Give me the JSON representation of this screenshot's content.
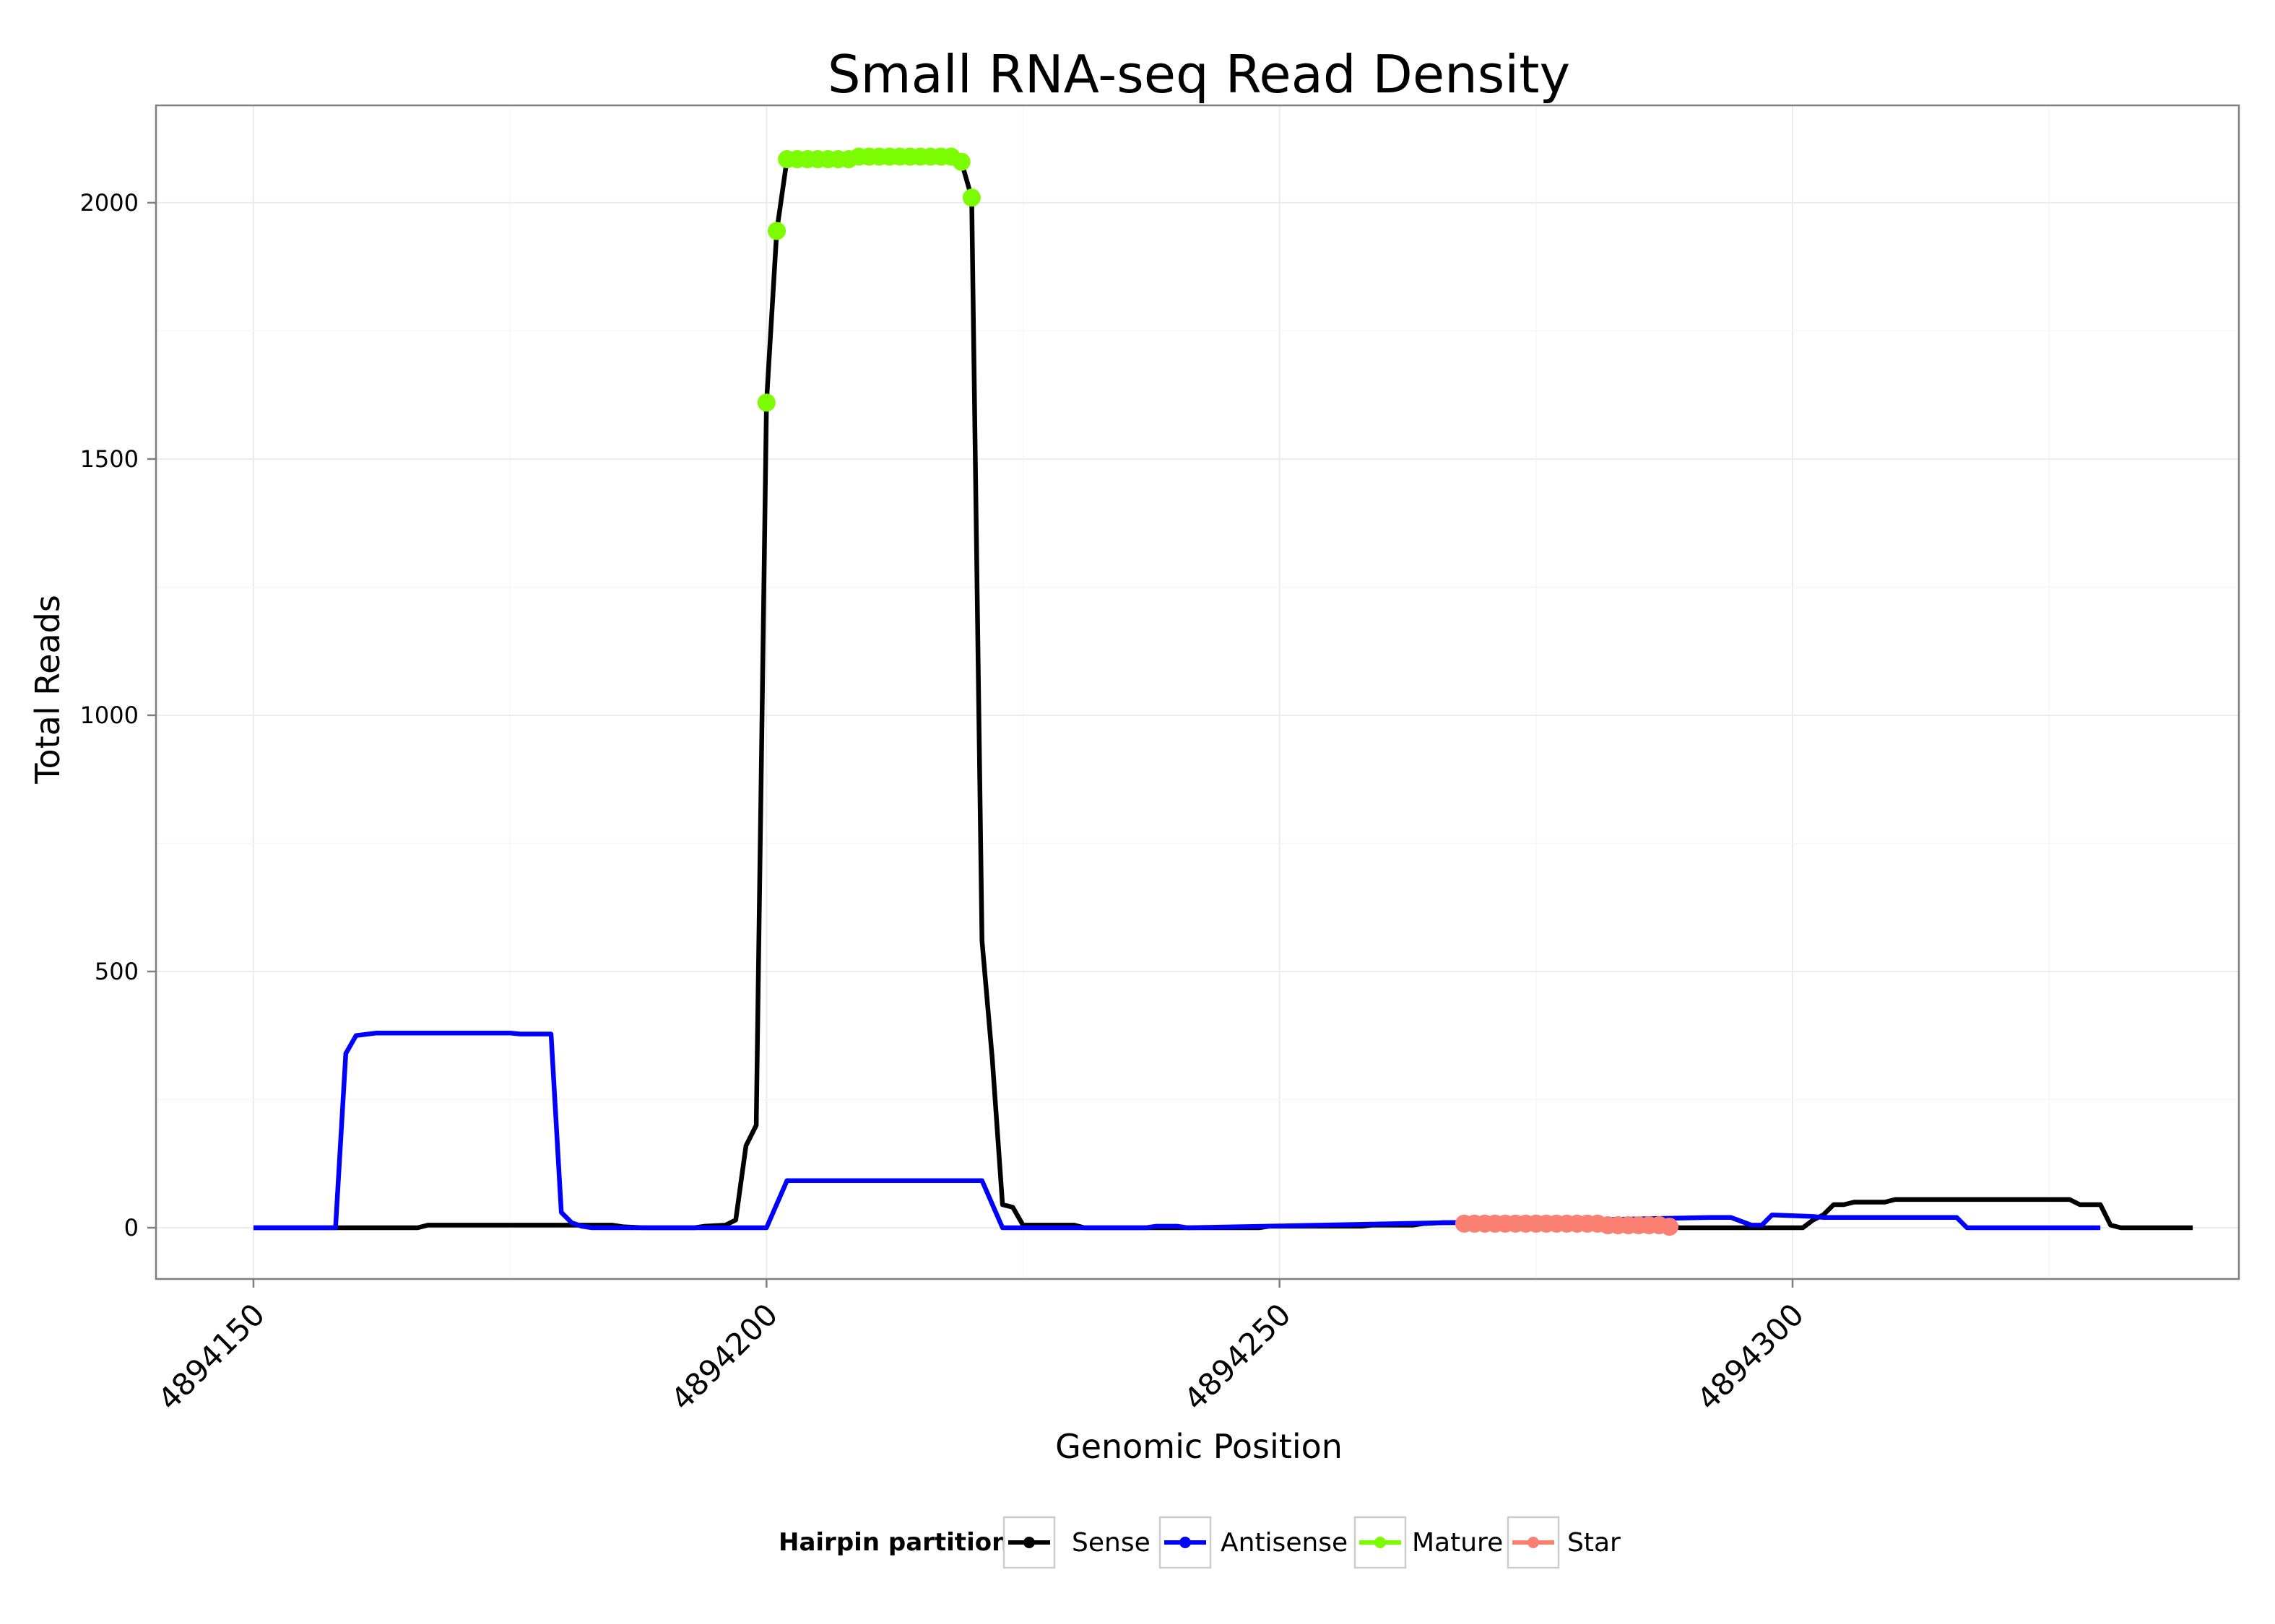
{
  "chart_data": {
    "type": "line",
    "title": "Small RNA-seq Read Density",
    "xlabel": "Genomic Position",
    "ylabel": "Total Reads",
    "xlim": [
      4894140.5,
      4894343.5
    ],
    "ylim": [
      -100,
      2190
    ],
    "x_ticks": [
      4894150,
      4894200,
      4894250,
      4894300
    ],
    "x_tick_labels": [
      "4894150",
      "4894200",
      "4894250",
      "4894300"
    ],
    "y_ticks": [
      0,
      500,
      1000,
      1500,
      2000
    ],
    "y_tick_labels": [
      "0",
      "500",
      "1000",
      "1500",
      "2000"
    ],
    "legend": {
      "title": "Hairpin partition",
      "position": "bottom",
      "entries": [
        {
          "name": "Sense",
          "color": "#000000"
        },
        {
          "name": "Antisense",
          "color": "#0000ff"
        },
        {
          "name": "Mature",
          "color": "#7cfc00"
        },
        {
          "name": "Star",
          "color": "#fa8072"
        }
      ]
    },
    "series": [
      {
        "name": "Sense",
        "kind": "line",
        "color": "#000000",
        "points": [
          [
            4894150,
            0
          ],
          [
            4894166,
            0
          ],
          [
            4894167,
            5
          ],
          [
            4894185,
            5
          ],
          [
            4894186,
            2
          ],
          [
            4894188,
            0
          ],
          [
            4894193,
            0
          ],
          [
            4894194,
            3
          ],
          [
            4894196,
            5
          ],
          [
            4894197,
            15
          ],
          [
            4894198,
            160
          ],
          [
            4894199,
            200
          ],
          [
            4894200,
            1610
          ],
          [
            4894201,
            1945
          ],
          [
            4894202,
            2085
          ],
          [
            4894219,
            2080
          ],
          [
            4894220,
            2010
          ],
          [
            4894221,
            560
          ],
          [
            4894222,
            330
          ],
          [
            4894223,
            45
          ],
          [
            4894224,
            40
          ],
          [
            4894225,
            5
          ],
          [
            4894230,
            5
          ],
          [
            4894231,
            0
          ],
          [
            4894248,
            0
          ],
          [
            4894249,
            3
          ],
          [
            4894258,
            3
          ],
          [
            4894259,
            5
          ],
          [
            4894263,
            5
          ],
          [
            4894264,
            8
          ],
          [
            4894266,
            10
          ],
          [
            4894287,
            8
          ],
          [
            4894288,
            3
          ],
          [
            4894289,
            0
          ],
          [
            4894301,
            0
          ],
          [
            4894302,
            15
          ],
          [
            4894303,
            25
          ],
          [
            4894304,
            45
          ],
          [
            4894305,
            45
          ],
          [
            4894306,
            50
          ],
          [
            4894309,
            50
          ],
          [
            4894310,
            55
          ],
          [
            4894327,
            55
          ],
          [
            4894328,
            45
          ],
          [
            4894330,
            45
          ],
          [
            4894331,
            5
          ],
          [
            4894332,
            0
          ],
          [
            4894339,
            0
          ]
        ]
      },
      {
        "name": "Antisense",
        "kind": "line",
        "color": "#0000ff",
        "points": [
          [
            4894150,
            0
          ],
          [
            4894158,
            0
          ],
          [
            4894159,
            340
          ],
          [
            4894160,
            375
          ],
          [
            4894162,
            380
          ],
          [
            4894175,
            380
          ],
          [
            4894176,
            378
          ],
          [
            4894179,
            378
          ],
          [
            4894180,
            30
          ],
          [
            4894181,
            10
          ],
          [
            4894182,
            3
          ],
          [
            4894183,
            0
          ],
          [
            4894200,
            0
          ],
          [
            4894202,
            92
          ],
          [
            4894221,
            92
          ],
          [
            4894223,
            0
          ],
          [
            4894237,
            0
          ],
          [
            4894238,
            3
          ],
          [
            4894240,
            3
          ],
          [
            4894241,
            0
          ],
          [
            4894292,
            20
          ],
          [
            4894294,
            20
          ],
          [
            4894296,
            5
          ],
          [
            4894297,
            5
          ],
          [
            4894298,
            25
          ],
          [
            4894302,
            22
          ],
          [
            4894303,
            20
          ],
          [
            4894316,
            20
          ],
          [
            4894317,
            0
          ],
          [
            4894330,
            0
          ]
        ]
      },
      {
        "name": "Mature",
        "kind": "points",
        "color": "#7cfc00",
        "points": [
          [
            4894200,
            1610
          ],
          [
            4894201,
            1945
          ],
          [
            4894202,
            2085
          ],
          [
            4894203,
            2085
          ],
          [
            4894204,
            2085
          ],
          [
            4894205,
            2085
          ],
          [
            4894206,
            2085
          ],
          [
            4894207,
            2085
          ],
          [
            4894208,
            2085
          ],
          [
            4894209,
            2090
          ],
          [
            4894210,
            2090
          ],
          [
            4894211,
            2090
          ],
          [
            4894212,
            2090
          ],
          [
            4894213,
            2090
          ],
          [
            4894214,
            2090
          ],
          [
            4894215,
            2090
          ],
          [
            4894216,
            2090
          ],
          [
            4894217,
            2090
          ],
          [
            4894218,
            2090
          ],
          [
            4894219,
            2080
          ],
          [
            4894220,
            2010
          ]
        ]
      },
      {
        "name": "Star",
        "kind": "points",
        "color": "#fa8072",
        "points": [
          [
            4894268,
            8
          ],
          [
            4894269,
            8
          ],
          [
            4894270,
            8
          ],
          [
            4894271,
            8
          ],
          [
            4894272,
            8
          ],
          [
            4894273,
            8
          ],
          [
            4894274,
            8
          ],
          [
            4894275,
            8
          ],
          [
            4894276,
            8
          ],
          [
            4894277,
            8
          ],
          [
            4894278,
            8
          ],
          [
            4894279,
            8
          ],
          [
            4894280,
            8
          ],
          [
            4894281,
            8
          ],
          [
            4894282,
            5
          ],
          [
            4894283,
            5
          ],
          [
            4894284,
            5
          ],
          [
            4894285,
            5
          ],
          [
            4894286,
            5
          ],
          [
            4894287,
            5
          ],
          [
            4894288,
            2
          ]
        ]
      }
    ]
  }
}
